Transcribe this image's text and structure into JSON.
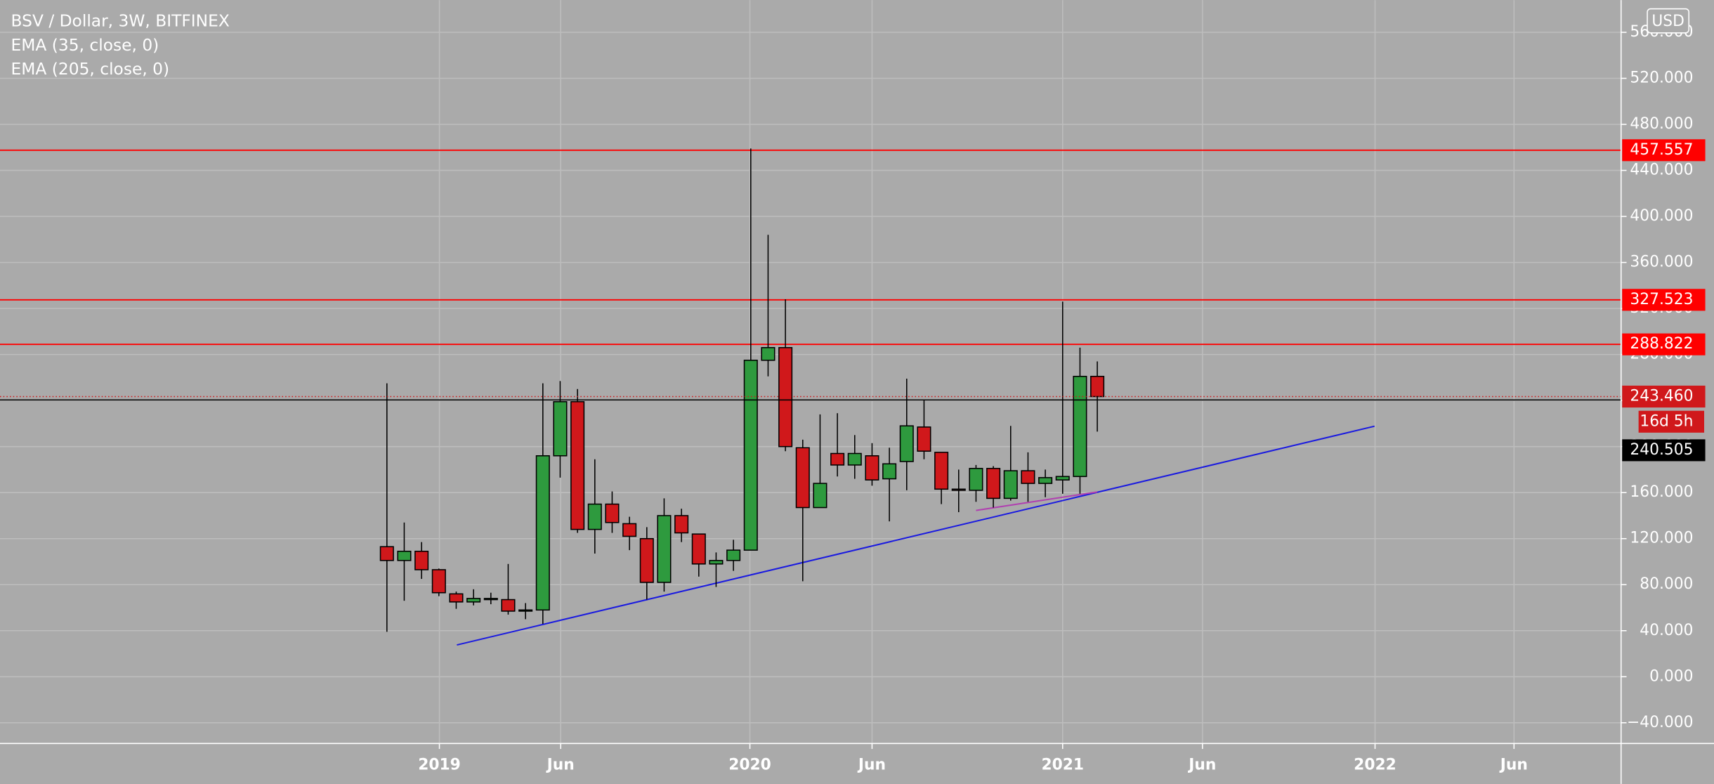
{
  "chart_data": {
    "type": "candlestick",
    "title": "BSV / Dollar, 3W, BITFINEX",
    "indicators": [
      "EMA (35, close, 0)",
      "EMA (205, close, 0)"
    ],
    "currency": "USD",
    "up_color": "#2e9a3e",
    "down_color": "#d0181b",
    "open": [
      113,
      101,
      109,
      93,
      72,
      65,
      67,
      67,
      57,
      58,
      192,
      239,
      128,
      150,
      133,
      120,
      82,
      140,
      124,
      98,
      101,
      110,
      275,
      286,
      199,
      147,
      194,
      184,
      192,
      172,
      187,
      217,
      195,
      163,
      162,
      181,
      155,
      179,
      168,
      171,
      174,
      261
    ],
    "high": [
      255,
      134,
      117,
      94,
      74,
      76,
      73,
      98,
      64,
      255,
      257,
      250,
      189,
      161,
      139,
      130,
      155,
      146,
      124,
      108,
      119,
      459,
      384,
      328,
      206,
      228,
      229,
      210,
      203,
      199,
      259,
      241,
      194,
      180,
      184,
      183,
      218,
      195,
      180,
      326,
      286,
      274
    ],
    "low": [
      39,
      66,
      85,
      70,
      59,
      62,
      63,
      54,
      50,
      46,
      173,
      125,
      107,
      125,
      110,
      67,
      74,
      117,
      87,
      78,
      92,
      110,
      261,
      196,
      83,
      147,
      174,
      172,
      166,
      135,
      162,
      189,
      150,
      143,
      152,
      147,
      153,
      152,
      156,
      159,
      159,
      213
    ],
    "close": [
      101,
      109,
      93,
      73,
      65,
      68,
      68,
      57,
      58,
      192,
      239,
      128,
      150,
      134,
      122,
      82,
      140,
      125,
      98,
      101,
      110,
      275,
      286,
      200,
      147,
      168,
      184,
      194,
      171,
      185,
      218,
      196,
      163,
      162,
      181,
      155,
      179,
      168,
      173,
      174,
      261,
      243.46
    ],
    "xlim": [
      -22.33,
      71.23
    ],
    "xticks": [
      {
        "value": 3.03,
        "label": "2019"
      },
      {
        "value": 10.03,
        "label": "Jun"
      },
      {
        "value": 20.95,
        "label": "2020"
      },
      {
        "value": 28.0,
        "label": "Jun"
      },
      {
        "value": 39.0,
        "label": "2021"
      },
      {
        "value": 47.07,
        "label": "Jun"
      },
      {
        "value": 57.03,
        "label": "2022"
      },
      {
        "value": 65.05,
        "label": "Jun"
      }
    ],
    "ylim": [
      -58,
      588
    ],
    "yticks": [
      {
        "value": -40,
        "label": "−40.000"
      },
      {
        "value": 0,
        "label": "0.000"
      },
      {
        "value": 40,
        "label": "40.000"
      },
      {
        "value": 80,
        "label": "80.000"
      },
      {
        "value": 120,
        "label": "120.000"
      },
      {
        "value": 160,
        "label": "160.000"
      },
      {
        "value": 200,
        "label": "200.000"
      },
      {
        "value": 240,
        "label": "240.000"
      },
      {
        "value": 280,
        "label": "280.000"
      },
      {
        "value": 320,
        "label": "320.000"
      },
      {
        "value": 360,
        "label": "360.000"
      },
      {
        "value": 400,
        "label": "400.000"
      },
      {
        "value": 440,
        "label": "440.000"
      },
      {
        "value": 480,
        "label": "480.000"
      },
      {
        "value": 520,
        "label": "520.000"
      },
      {
        "value": 560,
        "label": "560.000"
      }
    ],
    "grid": true,
    "levels": [
      {
        "value": 457.557,
        "color": "#ff0000"
      },
      {
        "value": 327.523,
        "color": "#ff0000"
      },
      {
        "value": 288.822,
        "color": "#ff0000"
      }
    ],
    "last_price": {
      "value": 243.46,
      "label": "243.460",
      "countdown": "16d 5h",
      "color": "#d0181b"
    },
    "crosshair": {
      "value": 240.505,
      "color": "#000000"
    },
    "trendlines": [
      {
        "color": "#1a1ae0",
        "x": [
          4.04,
          57.0
        ],
        "y": [
          27.6,
          217.7
        ]
      },
      {
        "color": "#b040b0",
        "x": [
          34.0,
          41.0
        ],
        "y": [
          144.5,
          160.6
        ]
      }
    ]
  }
}
